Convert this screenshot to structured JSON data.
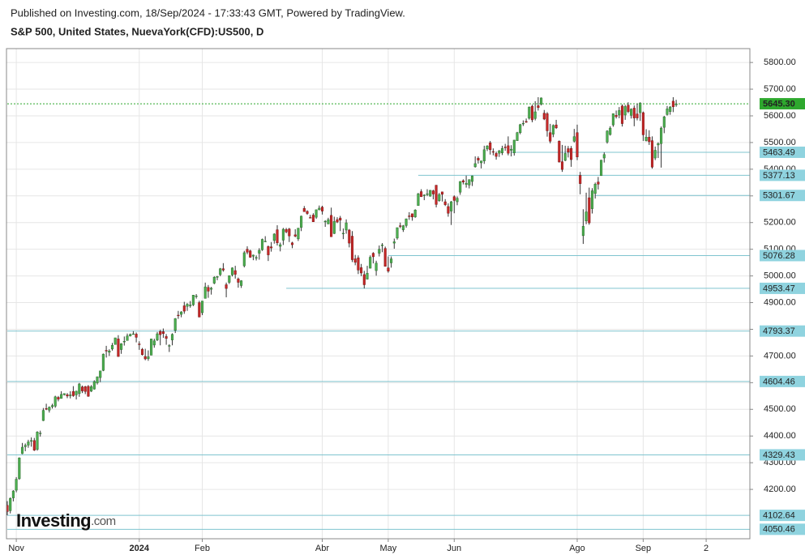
{
  "chart_data": {
    "type": "candlestick",
    "source": "Published on Investing.com, 18/Sep/2024 - 17:33:43 GMT, Powered by TradingView.",
    "title": "S&P 500, United States, NuevaYork(CFD):US500, D",
    "logo": "Investing",
    "logo_suffix": ".com",
    "xlim": [
      -0.27,
      247.57
    ],
    "ylim": [
      4015,
      5852
    ],
    "grid": true,
    "up_color": "#4caf50",
    "down_color": "#c62828",
    "xticks": [
      {
        "value": 3,
        "label": "Nov"
      },
      {
        "value": 44,
        "label": "2024"
      },
      {
        "value": 65,
        "label": "Feb"
      },
      {
        "value": 105,
        "label": "Abr"
      },
      {
        "value": 127,
        "label": "May"
      },
      {
        "value": 149,
        "label": "Jun"
      },
      {
        "value": 190,
        "label": "Ago"
      },
      {
        "value": 212,
        "label": "Sep"
      },
      {
        "value": 233,
        "label": "2"
      }
    ],
    "yticks": [
      {
        "value": 4200,
        "label": "4200.00"
      },
      {
        "value": 4300,
        "label": "4300.00"
      },
      {
        "value": 4400,
        "label": "4400.00"
      },
      {
        "value": 4500,
        "label": "4500.00"
      },
      {
        "value": 4600,
        "label": "4600.00"
      },
      {
        "value": 4700,
        "label": "4700.00"
      },
      {
        "value": 4800,
        "label": "4800.00"
      },
      {
        "value": 4900,
        "label": "4900.00"
      },
      {
        "value": 5000,
        "label": "5000.00"
      },
      {
        "value": 5100,
        "label": "5100.00"
      },
      {
        "value": 5200,
        "label": "5200.00"
      },
      {
        "value": 5300,
        "label": "5300.00"
      },
      {
        "value": 5400,
        "label": "5400.00"
      },
      {
        "value": 5500,
        "label": "5500.00"
      },
      {
        "value": 5600,
        "label": "5600.00"
      },
      {
        "value": 5700,
        "label": "5700.00"
      },
      {
        "value": 5800,
        "label": "5800.00"
      }
    ],
    "levels": [
      {
        "value": 5645.3,
        "label": "5645.30",
        "start": 0,
        "color": "#2ea82e",
        "current": true
      },
      {
        "value": 5463.49,
        "label": "5463.49",
        "start": 168,
        "color": "#7fc4cf"
      },
      {
        "value": 5377.13,
        "label": "5377.13",
        "start": 137,
        "color": "#7fc4cf"
      },
      {
        "value": 5301.67,
        "label": "5301.67",
        "start": 196,
        "color": "#7fc4cf"
      },
      {
        "value": 5076.28,
        "label": "5076.28",
        "start": 127,
        "color": "#7fc4cf"
      },
      {
        "value": 4953.47,
        "label": "4953.47",
        "start": 93,
        "color": "#7fc4cf"
      },
      {
        "value": 4793.37,
        "label": "4793.37",
        "start": 0,
        "color": "#7fc4cf"
      },
      {
        "value": 4604.46,
        "label": "4604.46",
        "start": 0,
        "color": "#7fc4cf"
      },
      {
        "value": 4329.43,
        "label": "4329.43",
        "start": 0,
        "color": "#7fc4cf"
      },
      {
        "value": 4102.64,
        "label": "4102.64",
        "start": 0,
        "color": "#7fc4cf"
      },
      {
        "value": 4050.46,
        "label": "4050.46",
        "start": 0,
        "color": "#7fc4cf"
      }
    ],
    "candles": [
      [
        4140,
        4156,
        4103,
        4117
      ],
      [
        4120,
        4170,
        4110,
        4166
      ],
      [
        4168,
        4197,
        4155,
        4194
      ],
      [
        4197,
        4246,
        4189,
        4238
      ],
      [
        4240,
        4320,
        4236,
        4318
      ],
      [
        4334,
        4374,
        4332,
        4358
      ],
      [
        4360,
        4372,
        4343,
        4365
      ],
      [
        4366,
        4386,
        4356,
        4378
      ],
      [
        4381,
        4395,
        4360,
        4383
      ],
      [
        4383,
        4393,
        4344,
        4347
      ],
      [
        4350,
        4418,
        4345,
        4415
      ],
      [
        4410,
        4420,
        4398,
        4411
      ],
      [
        4458,
        4505,
        4456,
        4496
      ],
      [
        4503,
        4521,
        4497,
        4502
      ],
      [
        4497,
        4511,
        4488,
        4508
      ],
      [
        4510,
        4521,
        4503,
        4514
      ],
      [
        4512,
        4551,
        4506,
        4547
      ],
      [
        4545,
        4550,
        4530,
        4538
      ],
      [
        4541,
        4568,
        4540,
        4556
      ],
      [
        4555,
        4560,
        4552,
        4559
      ],
      [
        4555,
        4561,
        4542,
        4550
      ],
      [
        4551,
        4568,
        4541,
        4554
      ],
      [
        4567,
        4587,
        4547,
        4551
      ],
      [
        4554,
        4570,
        4537,
        4568
      ],
      [
        4559,
        4599,
        4547,
        4595
      ],
      [
        4584,
        4589,
        4561,
        4569
      ],
      [
        4585,
        4588,
        4557,
        4567
      ],
      [
        4586,
        4591,
        4547,
        4549
      ],
      [
        4568,
        4591,
        4565,
        4585
      ],
      [
        4576,
        4609,
        4574,
        4604
      ],
      [
        4599,
        4623,
        4593,
        4622
      ],
      [
        4619,
        4644,
        4602,
        4644
      ],
      [
        4646,
        4709,
        4643,
        4707
      ],
      [
        4721,
        4738,
        4694,
        4720
      ],
      [
        4714,
        4725,
        4700,
        4719
      ],
      [
        4726,
        4749,
        4720,
        4740
      ],
      [
        4743,
        4768,
        4743,
        4768
      ],
      [
        4764,
        4778,
        4697,
        4698
      ],
      [
        4724,
        4748,
        4708,
        4746
      ],
      [
        4753,
        4773,
        4739,
        4755
      ],
      [
        4758,
        4784,
        4758,
        4775
      ],
      [
        4775,
        4784,
        4773,
        4781
      ],
      [
        4782,
        4793,
        4780,
        4783
      ],
      [
        4782,
        4788,
        4751,
        4770
      ],
      [
        4745,
        4755,
        4723,
        4743
      ],
      [
        4725,
        4730,
        4702,
        4705
      ],
      [
        4698,
        4727,
        4684,
        4689
      ],
      [
        4690,
        4721,
        4682,
        4697
      ],
      [
        4703,
        4765,
        4703,
        4764
      ],
      [
        4741,
        4765,
        4731,
        4757
      ],
      [
        4760,
        4790,
        4756,
        4783
      ],
      [
        4792,
        4798,
        4740,
        4780
      ],
      [
        4791,
        4803,
        4768,
        4784
      ],
      [
        4773,
        4782,
        4742,
        4766
      ],
      [
        4739,
        4744,
        4715,
        4739
      ],
      [
        4760,
        4785,
        4740,
        4781
      ],
      [
        4796,
        4842,
        4786,
        4840
      ],
      [
        4853,
        4869,
        4839,
        4851
      ],
      [
        4856,
        4868,
        4845,
        4865
      ],
      [
        4888,
        4903,
        4858,
        4868
      ],
      [
        4886,
        4898,
        4869,
        4894
      ],
      [
        4888,
        4906,
        4881,
        4891
      ],
      [
        4892,
        4929,
        4887,
        4928
      ],
      [
        4925,
        4932,
        4915,
        4925
      ],
      [
        4900,
        4907,
        4845,
        4846
      ],
      [
        4862,
        4906,
        4853,
        4906
      ],
      [
        4916,
        4975,
        4915,
        4959
      ],
      [
        4957,
        4966,
        4918,
        4943
      ],
      [
        4950,
        4959,
        4930,
        4954
      ],
      [
        4973,
        4999,
        4969,
        4995
      ],
      [
        4995,
        5000,
        4984,
        4998
      ],
      [
        5005,
        5030,
        4999,
        5027
      ],
      [
        5027,
        5048,
        5016,
        5022
      ],
      [
        4967,
        4975,
        4920,
        4953
      ],
      [
        4976,
        5002,
        4970,
        5001
      ],
      [
        5004,
        5032,
        4998,
        5030
      ],
      [
        5020,
        5038,
        4990,
        5006
      ],
      [
        4989,
        4994,
        4956,
        4976
      ],
      [
        4964,
        4984,
        4955,
        4982
      ],
      [
        5038,
        5094,
        5032,
        5087
      ],
      [
        5100,
        5111,
        5081,
        5089
      ],
      [
        5094,
        5098,
        5068,
        5070
      ],
      [
        5074,
        5080,
        5059,
        5078
      ],
      [
        5067,
        5077,
        5058,
        5069
      ],
      [
        5085,
        5104,
        5061,
        5096
      ],
      [
        5098,
        5140,
        5094,
        5137
      ],
      [
        5130,
        5149,
        5127,
        5130
      ],
      [
        5110,
        5114,
        5056,
        5079
      ],
      [
        5109,
        5127,
        5091,
        5105
      ],
      [
        5133,
        5160,
        5121,
        5157
      ],
      [
        5173,
        5190,
        5114,
        5124
      ],
      [
        5111,
        5125,
        5092,
        5117
      ],
      [
        5134,
        5180,
        5116,
        5175
      ],
      [
        5174,
        5180,
        5160,
        5165
      ],
      [
        5176,
        5180,
        5127,
        5150
      ],
      [
        5124,
        5128,
        5104,
        5117
      ],
      [
        5154,
        5175,
        5145,
        5149
      ],
      [
        5139,
        5180,
        5131,
        5179
      ],
      [
        5182,
        5226,
        5168,
        5224
      ],
      [
        5253,
        5262,
        5240,
        5241
      ],
      [
        5242,
        5246,
        5229,
        5234
      ],
      [
        5219,
        5229,
        5216,
        5218
      ],
      [
        5228,
        5235,
        5203,
        5203
      ],
      [
        5220,
        5249,
        5214,
        5248
      ],
      [
        5248,
        5264,
        5246,
        5254
      ],
      [
        5258,
        5263,
        5230,
        5243
      ],
      [
        5204,
        5209,
        5184,
        5205
      ],
      [
        5195,
        5218,
        5194,
        5211
      ],
      [
        5227,
        5256,
        5146,
        5147
      ],
      [
        5159,
        5222,
        5157,
        5204
      ],
      [
        5211,
        5220,
        5198,
        5202
      ],
      [
        5217,
        5225,
        5168,
        5209
      ],
      [
        5159,
        5178,
        5138,
        5160
      ],
      [
        5172,
        5212,
        5158,
        5199
      ],
      [
        5172,
        5176,
        5107,
        5123
      ],
      [
        5149,
        5168,
        5052,
        5061
      ],
      [
        5064,
        5079,
        5040,
        5051
      ],
      [
        5068,
        5077,
        5007,
        5022
      ],
      [
        5031,
        5045,
        4999,
        5011
      ],
      [
        5005,
        5019,
        4953,
        4967
      ],
      [
        4988,
        5038,
        4987,
        5010
      ],
      [
        5029,
        5077,
        5028,
        5070
      ],
      [
        5085,
        5089,
        5047,
        5072
      ],
      [
        5020,
        5057,
        5001,
        5048
      ],
      [
        5085,
        5114,
        5073,
        5100
      ],
      [
        5115,
        5123,
        5089,
        5116
      ],
      [
        5103,
        5110,
        5035,
        5036
      ],
      [
        5030,
        5073,
        5012,
        5018
      ],
      [
        5049,
        5073,
        5031,
        5064
      ],
      [
        5123,
        5140,
        5102,
        5128
      ],
      [
        5142,
        5181,
        5136,
        5181
      ],
      [
        5188,
        5200,
        5179,
        5187
      ],
      [
        5173,
        5191,
        5165,
        5188
      ],
      [
        5189,
        5215,
        5181,
        5214
      ],
      [
        5225,
        5239,
        5210,
        5223
      ],
      [
        5233,
        5234,
        5207,
        5221
      ],
      [
        5221,
        5250,
        5218,
        5247
      ],
      [
        5264,
        5311,
        5263,
        5308
      ],
      [
        5316,
        5325,
        5296,
        5297
      ],
      [
        5303,
        5306,
        5284,
        5303
      ],
      [
        5305,
        5325,
        5299,
        5308
      ],
      [
        5299,
        5322,
        5297,
        5321
      ],
      [
        5319,
        5323,
        5287,
        5307
      ],
      [
        5340,
        5341,
        5257,
        5268
      ],
      [
        5282,
        5311,
        5278,
        5305
      ],
      [
        5315,
        5315,
        5279,
        5306
      ],
      [
        5278,
        5288,
        5262,
        5267
      ],
      [
        5260,
        5272,
        5222,
        5235
      ],
      [
        5243,
        5281,
        5191,
        5278
      ],
      [
        5297,
        5302,
        5235,
        5283
      ],
      [
        5278,
        5298,
        5265,
        5291
      ],
      [
        5314,
        5355,
        5304,
        5354
      ],
      [
        5357,
        5362,
        5343,
        5352
      ],
      [
        5343,
        5376,
        5331,
        5347
      ],
      [
        5341,
        5362,
        5328,
        5361
      ],
      [
        5354,
        5376,
        5337,
        5375
      ],
      [
        5409,
        5448,
        5406,
        5421
      ],
      [
        5441,
        5448,
        5421,
        5434
      ],
      [
        5424,
        5432,
        5403,
        5431
      ],
      [
        5431,
        5488,
        5420,
        5473
      ],
      [
        5476,
        5490,
        5468,
        5487
      ],
      [
        5499,
        5506,
        5455,
        5473
      ],
      [
        5466,
        5478,
        5452,
        5464
      ],
      [
        5459,
        5466,
        5436,
        5448
      ],
      [
        5460,
        5472,
        5446,
        5469
      ],
      [
        5461,
        5488,
        5453,
        5478
      ],
      [
        5483,
        5495,
        5469,
        5482
      ],
      [
        5488,
        5523,
        5452,
        5460
      ],
      [
        5471,
        5490,
        5448,
        5475
      ],
      [
        5461,
        5510,
        5451,
        5509
      ],
      [
        5507,
        5540,
        5506,
        5537
      ],
      [
        5537,
        5570,
        5531,
        5567
      ],
      [
        5572,
        5583,
        5562,
        5572
      ],
      [
        5579,
        5590,
        5574,
        5576
      ],
      [
        5591,
        5635,
        5586,
        5633
      ],
      [
        5636,
        5642,
        5576,
        5585
      ],
      [
        5590,
        5655,
        5583,
        5615
      ],
      [
        5638,
        5670,
        5620,
        5631
      ],
      [
        5644,
        5669,
        5639,
        5667
      ],
      [
        5610,
        5622,
        5584,
        5588
      ],
      [
        5608,
        5614,
        5522,
        5544
      ],
      [
        5537,
        5570,
        5497,
        5505
      ],
      [
        5531,
        5568,
        5520,
        5564
      ],
      [
        5566,
        5585,
        5551,
        5555
      ],
      [
        5505,
        5508,
        5425,
        5427
      ],
      [
        5428,
        5491,
        5390,
        5399
      ],
      [
        5433,
        5488,
        5430,
        5459
      ],
      [
        5477,
        5487,
        5444,
        5464
      ],
      [
        5478,
        5487,
        5409,
        5436
      ],
      [
        5505,
        5551,
        5500,
        5522
      ],
      [
        5537,
        5567,
        5434,
        5446
      ],
      [
        5377,
        5390,
        5306,
        5346
      ],
      [
        5151,
        5250,
        5120,
        5186
      ],
      [
        5206,
        5312,
        5194,
        5240
      ],
      [
        5293,
        5331,
        5192,
        5199
      ],
      [
        5252,
        5329,
        5234,
        5319
      ],
      [
        5309,
        5350,
        5290,
        5344
      ],
      [
        5352,
        5371,
        5324,
        5344
      ],
      [
        5376,
        5435,
        5375,
        5434
      ],
      [
        5442,
        5463,
        5425,
        5455
      ],
      [
        5502,
        5546,
        5496,
        5543
      ],
      [
        5530,
        5561,
        5526,
        5554
      ],
      [
        5566,
        5608,
        5559,
        5608
      ],
      [
        5602,
        5620,
        5590,
        5597
      ],
      [
        5603,
        5633,
        5591,
        5620
      ],
      [
        5637,
        5643,
        5560,
        5571
      ],
      [
        5603,
        5641,
        5585,
        5635
      ],
      [
        5640,
        5651,
        5610,
        5616
      ],
      [
        5602,
        5628,
        5590,
        5625
      ],
      [
        5629,
        5639,
        5561,
        5592
      ],
      [
        5607,
        5646,
        5583,
        5592
      ],
      [
        5612,
        5651,
        5581,
        5648
      ],
      [
        5612,
        5616,
        5506,
        5529
      ],
      [
        5507,
        5550,
        5504,
        5520
      ],
      [
        5520,
        5546,
        5491,
        5503
      ],
      [
        5507,
        5523,
        5402,
        5408
      ],
      [
        5442,
        5485,
        5434,
        5471
      ],
      [
        5491,
        5501,
        5442,
        5496
      ],
      [
        5496,
        5560,
        5406,
        5554
      ],
      [
        5557,
        5600,
        5535,
        5596
      ],
      [
        5605,
        5637,
        5601,
        5626
      ],
      [
        5616,
        5637,
        5604,
        5633
      ],
      [
        5655,
        5670,
        5614,
        5634
      ],
      [
        5641,
        5660,
        5634,
        5645
      ]
    ]
  }
}
